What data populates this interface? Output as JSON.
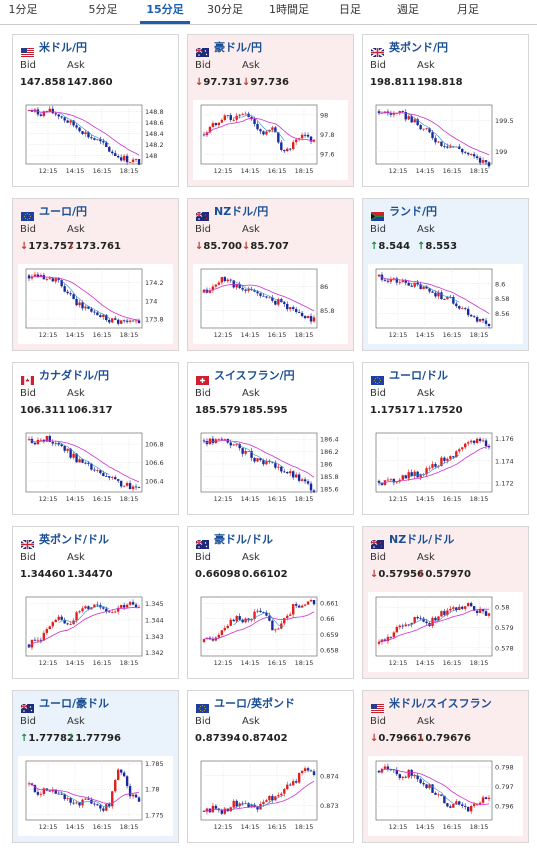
{
  "tabs": [
    {
      "label": "1分足",
      "active": false
    },
    {
      "label": "5分足",
      "active": false
    },
    {
      "label": "15分足",
      "active": true
    },
    {
      "label": "30分足",
      "active": false
    },
    {
      "label": "1時間足",
      "active": false
    },
    {
      "label": "日足",
      "active": false
    },
    {
      "label": "週足",
      "active": false
    },
    {
      "label": "月足",
      "active": false
    }
  ],
  "labels": {
    "bid": "Bid",
    "ask": "Ask"
  },
  "colors": {
    "up": "#e02020",
    "down": "#1a2a9c",
    "ma": "#cc33cc",
    "ma_short": "#2e8bd6",
    "arrow_down": "#c0392b",
    "arrow_up": "#1e8a3c",
    "title": "#1a4e95",
    "down_bg": "#fbeded",
    "up_bg": "#eaf3fb"
  },
  "pairs": [
    {
      "name": "米ドル/円",
      "flag": "us-flag",
      "bid": "147.858",
      "ask": "147.860",
      "arrow": "",
      "trend": "none",
      "y_ticks": [
        "148.8",
        "148.6",
        "148.4",
        "148.2",
        "148"
      ],
      "y_range": [
        147.85,
        148.92
      ],
      "path": [
        148.82,
        148.77,
        148.8,
        148.74,
        148.6,
        148.5,
        148.35,
        148.25,
        148.1,
        147.98,
        147.92,
        147.88
      ]
    },
    {
      "name": "豪ドル/円",
      "flag": "au-flag",
      "bid": "97.731",
      "ask": "97.736",
      "arrow": "down",
      "trend": "down",
      "y_ticks": [
        "98",
        "97.8",
        "97.6"
      ],
      "y_range": [
        97.5,
        98.1
      ],
      "path": [
        97.8,
        97.9,
        98.0,
        97.95,
        98.02,
        97.92,
        97.8,
        97.85,
        97.6,
        97.7,
        97.78,
        97.74
      ]
    },
    {
      "name": "英ポンド/円",
      "flag": "uk-flag",
      "bid": "198.811",
      "ask": "198.818",
      "arrow": "",
      "trend": "none",
      "y_ticks": [
        "199.5",
        "199"
      ],
      "y_range": [
        198.8,
        199.75
      ],
      "path": [
        199.65,
        199.62,
        199.6,
        199.55,
        199.4,
        199.3,
        199.15,
        199.1,
        199.05,
        198.95,
        198.85,
        198.82
      ]
    },
    {
      "name": "ユーロ/円",
      "flag": "eu-flag",
      "bid": "173.757",
      "ask": "173.761",
      "arrow": "down",
      "trend": "down",
      "y_ticks": [
        "174.2",
        "174",
        "173.8"
      ],
      "y_range": [
        173.7,
        174.35
      ],
      "path": [
        174.28,
        174.3,
        174.25,
        174.2,
        174.05,
        173.95,
        173.9,
        173.85,
        173.8,
        173.78,
        173.76,
        173.76
      ]
    },
    {
      "name": "NZドル/円",
      "flag": "nz-flag",
      "bid": "85.700",
      "ask": "85.707",
      "arrow": "down",
      "trend": "down",
      "y_ticks": [
        "86",
        "85.8"
      ],
      "y_range": [
        85.65,
        86.15
      ],
      "path": [
        85.95,
        86.0,
        86.08,
        86.02,
        85.95,
        85.98,
        85.9,
        85.88,
        85.85,
        85.8,
        85.75,
        85.72
      ]
    },
    {
      "name": "ランド/円",
      "flag": "za-flag",
      "bid": "8.544",
      "ask": "8.553",
      "arrow": "up",
      "trend": "up",
      "y_ticks": [
        "8.6",
        "8.58",
        "8.56"
      ],
      "y_range": [
        8.54,
        8.62
      ],
      "path": [
        8.61,
        8.605,
        8.602,
        8.6,
        8.595,
        8.59,
        8.585,
        8.58,
        8.57,
        8.56,
        8.55,
        8.545
      ]
    },
    {
      "name": "カナダドル/円",
      "flag": "ca-flag",
      "bid": "106.311",
      "ask": "106.317",
      "arrow": "",
      "trend": "none",
      "y_ticks": [
        "106.8",
        "106.6",
        "106.4"
      ],
      "y_range": [
        106.28,
        106.92
      ],
      "path": [
        106.85,
        106.82,
        106.86,
        106.8,
        106.7,
        106.62,
        106.55,
        106.48,
        106.42,
        106.38,
        106.33,
        106.31
      ]
    },
    {
      "name": "スイスフラン/円",
      "flag": "ch-flag",
      "bid": "185.579",
      "ask": "185.595",
      "arrow": "",
      "trend": "none",
      "y_ticks": [
        "186.4",
        "186.2",
        "186",
        "185.8",
        "185.6"
      ],
      "y_range": [
        185.55,
        186.5
      ],
      "path": [
        186.38,
        186.35,
        186.4,
        186.3,
        186.2,
        186.1,
        186.05,
        185.95,
        185.9,
        185.8,
        185.7,
        185.6
      ]
    },
    {
      "name": "ユーロ/ドル",
      "flag": "eu-flag",
      "bid": "1.17517",
      "ask": "1.17520",
      "arrow": "",
      "trend": "none",
      "y_ticks": [
        "1.176",
        "1.174",
        "1.172"
      ],
      "y_range": [
        1.1712,
        1.1765
      ],
      "path": [
        1.1722,
        1.172,
        1.1725,
        1.1728,
        1.1727,
        1.1735,
        1.1738,
        1.1745,
        1.1748,
        1.1755,
        1.176,
        1.1752
      ]
    },
    {
      "name": "英ポンド/ドル",
      "flag": "uk-flag",
      "bid": "1.34460",
      "ask": "1.34470",
      "arrow": "",
      "trend": "none",
      "y_ticks": [
        "1.345",
        "1.344",
        "1.343",
        "1.342"
      ],
      "y_range": [
        1.3418,
        1.3454
      ],
      "path": [
        1.3425,
        1.3428,
        1.3435,
        1.344,
        1.3438,
        1.3445,
        1.3448,
        1.345,
        1.3445,
        1.3448,
        1.345,
        1.3446
      ]
    },
    {
      "name": "豪ドル/ドル",
      "flag": "au-flag",
      "bid": "0.66098",
      "ask": "0.66102",
      "arrow": "",
      "trend": "none",
      "y_ticks": [
        "0.661",
        "0.66",
        "0.659",
        "0.658"
      ],
      "y_range": [
        0.6576,
        0.6614
      ],
      "path": [
        0.6585,
        0.6588,
        0.6595,
        0.66,
        0.6598,
        0.6603,
        0.6605,
        0.659,
        0.6598,
        0.6608,
        0.661,
        0.661
      ]
    },
    {
      "name": "NZドル/ドル",
      "flag": "nz-flag",
      "bid": "0.57956",
      "ask": "0.57970",
      "arrow": "down",
      "trend": "down",
      "y_ticks": [
        "0.58",
        "0.579",
        "0.578"
      ],
      "y_range": [
        0.5776,
        0.5805
      ],
      "path": [
        0.5782,
        0.5785,
        0.579,
        0.5792,
        0.5795,
        0.5792,
        0.5796,
        0.5798,
        0.58,
        0.5802,
        0.5798,
        0.5796
      ]
    },
    {
      "name": "ユーロ/豪ドル",
      "flag": "au-flag",
      "bid": "1.77782",
      "ask": "1.77796",
      "arrow": "up",
      "trend": "up",
      "y_ticks": [
        "1.785",
        "1.78",
        "1.775"
      ],
      "y_range": [
        1.774,
        1.7855
      ],
      "path": [
        1.781,
        1.779,
        1.78,
        1.779,
        1.778,
        1.777,
        1.778,
        1.776,
        1.777,
        1.785,
        1.779,
        1.778
      ]
    },
    {
      "name": "ユーロ/英ポンド",
      "flag": "eu-flag",
      "bid": "0.87394",
      "ask": "0.87402",
      "arrow": "",
      "trend": "none",
      "y_ticks": [
        "0.874",
        "0.873"
      ],
      "y_range": [
        0.8725,
        0.8745
      ],
      "path": [
        0.8728,
        0.8729,
        0.8728,
        0.8731,
        0.873,
        0.8729,
        0.8731,
        0.8733,
        0.8735,
        0.8738,
        0.8742,
        0.874
      ]
    },
    {
      "name": "米ドル/スイスフラン",
      "flag": "us-flag",
      "bid": "0.79661",
      "ask": "0.79676",
      "arrow": "down",
      "trend": "down",
      "y_ticks": [
        "0.798",
        "0.797",
        "0.796"
      ],
      "y_range": [
        0.7953,
        0.7983
      ],
      "path": [
        0.7978,
        0.7979,
        0.7975,
        0.7977,
        0.7972,
        0.797,
        0.7965,
        0.796,
        0.7962,
        0.7958,
        0.7962,
        0.7966
      ]
    }
  ],
  "x_ticks": [
    "12:15",
    "14:15",
    "16:15",
    "18:15"
  ]
}
